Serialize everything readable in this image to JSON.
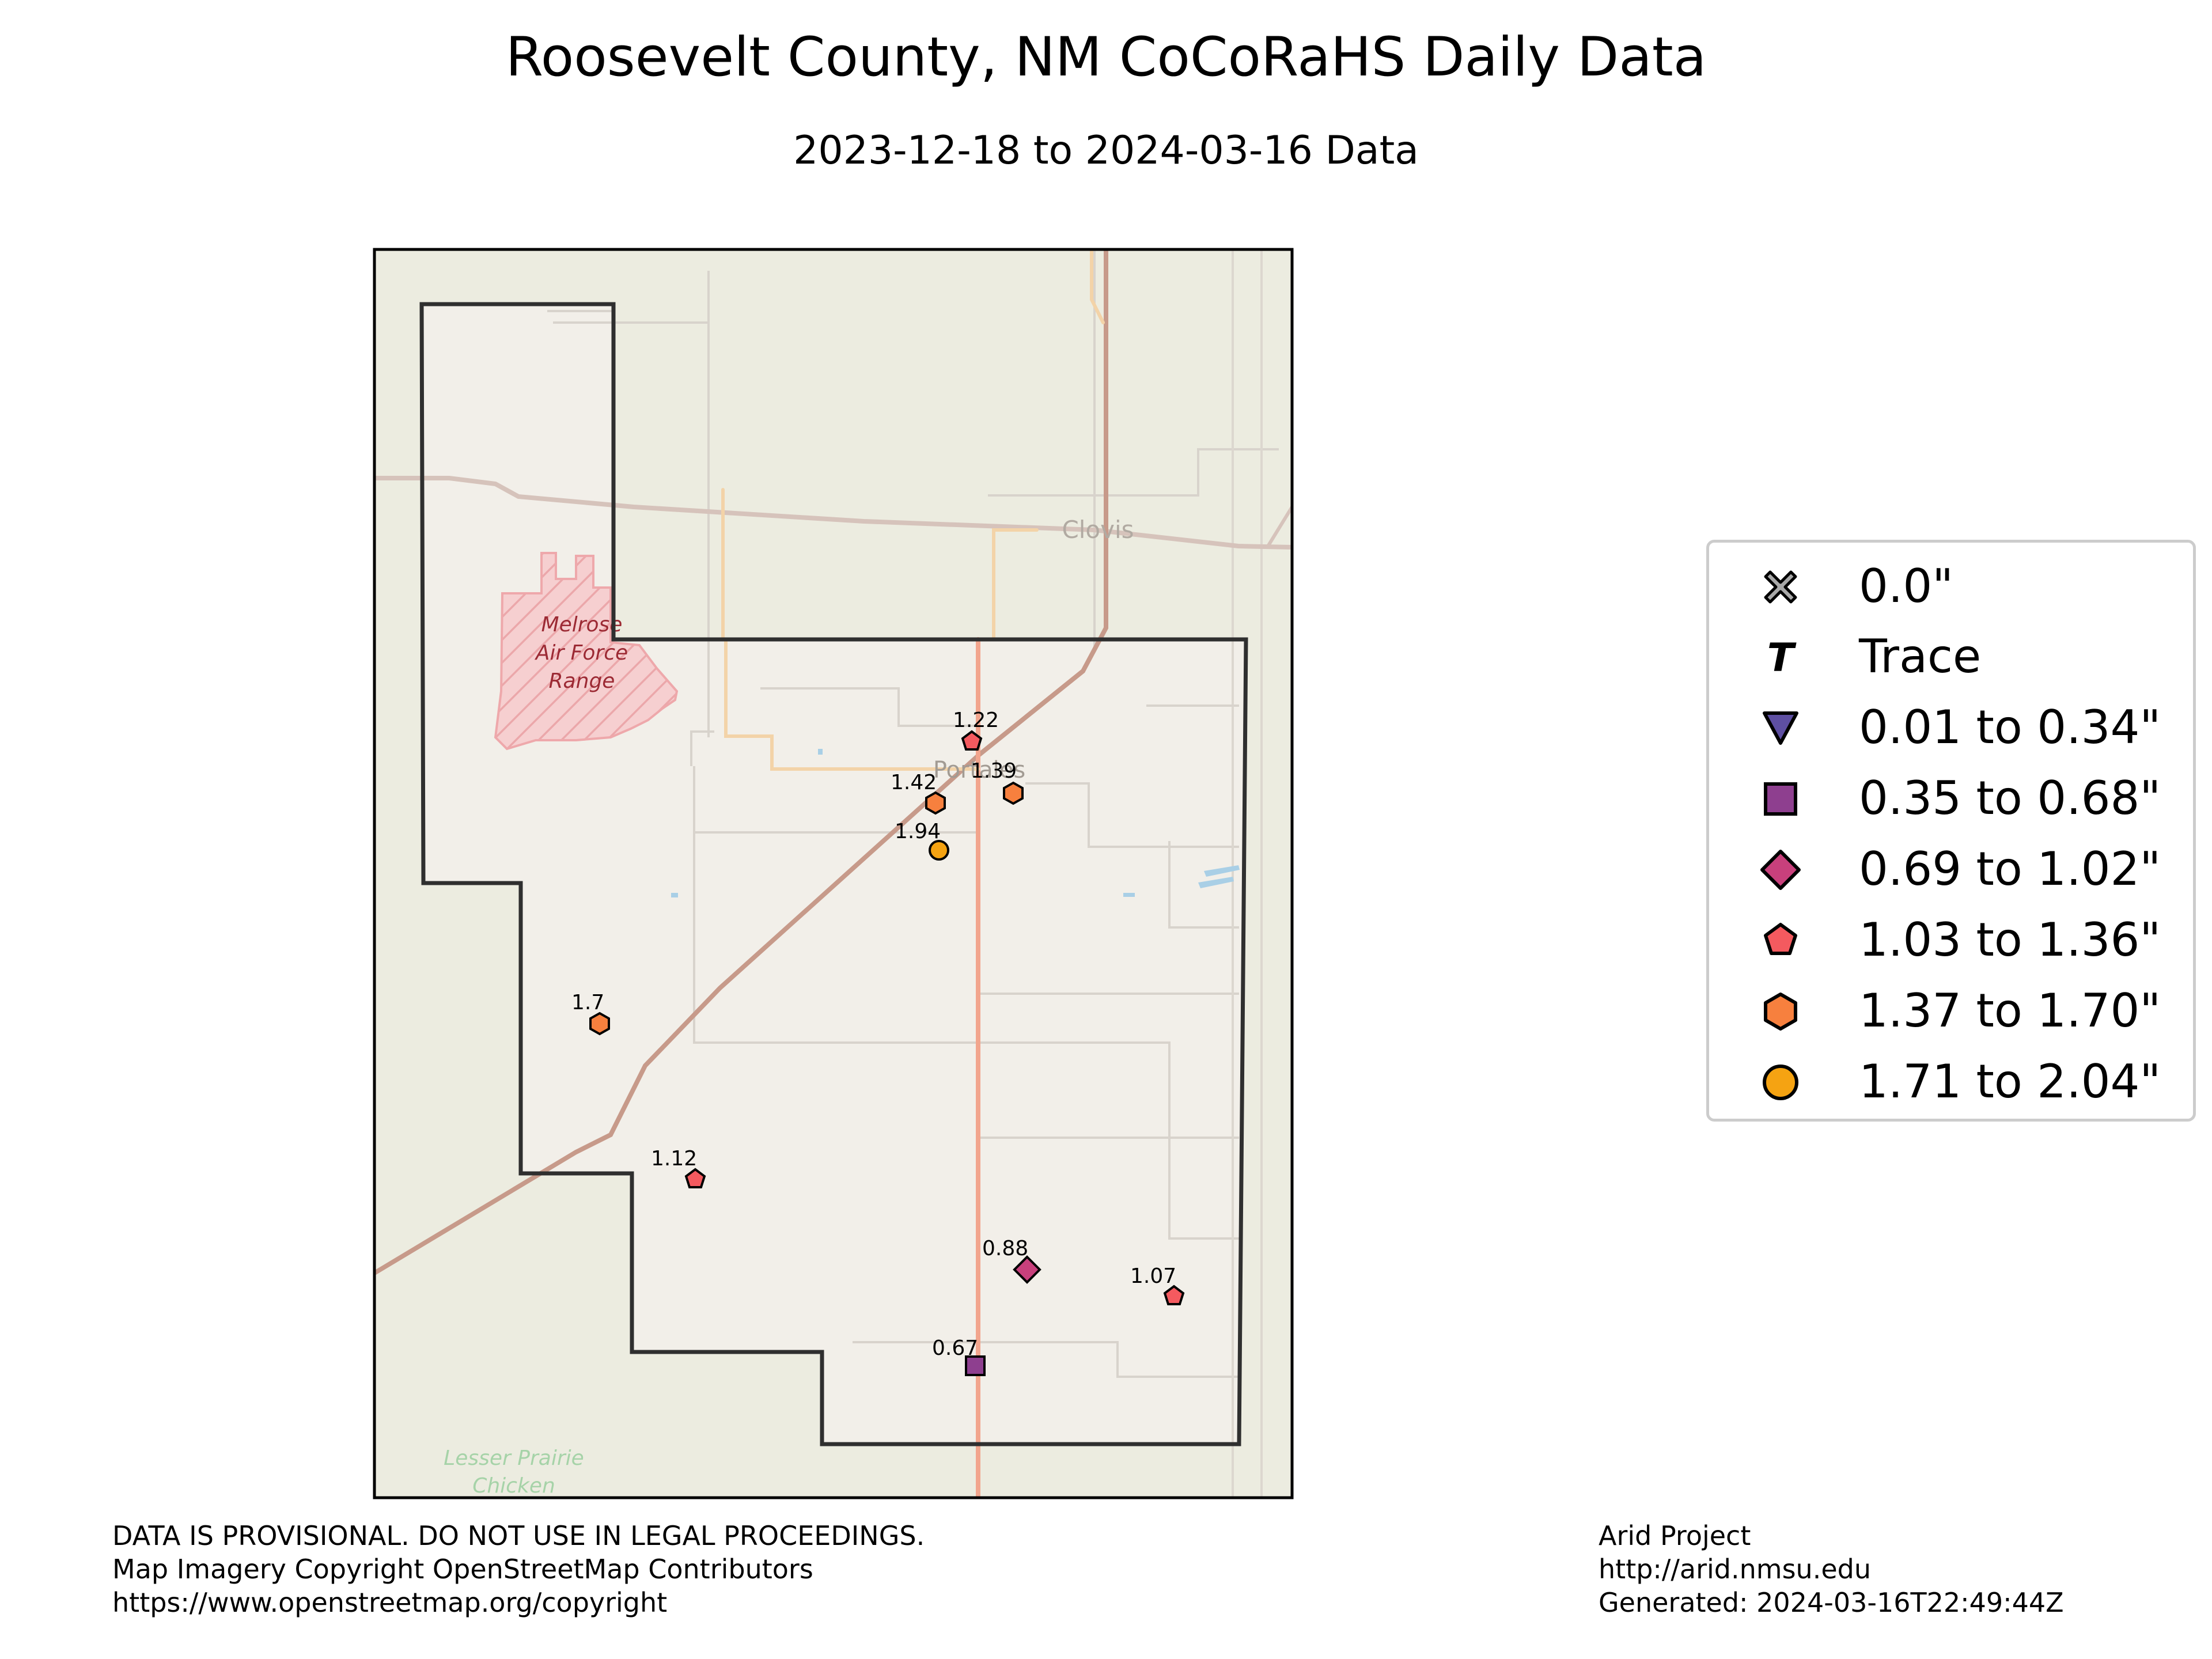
{
  "title": "Roosevelt County, NM CoCoRaHS Daily Data",
  "subtitle": "2023-12-18 to 2024-03-16 Data",
  "map_labels": {
    "city_north": "Clovis",
    "city_center": "Portales",
    "area_1": "Melrose",
    "area_2": "Air Force",
    "area_3": "Range",
    "area_4": "Lesser Prairie",
    "area_5": "Chicken"
  },
  "stations": [
    {
      "value": "1.22",
      "category": "1.03 to 1.36\"",
      "marker": "pentagon-icon"
    },
    {
      "value": "1.39",
      "category": "1.37 to 1.70\"",
      "marker": "hexagon-icon"
    },
    {
      "value": "1.42",
      "category": "1.37 to 1.70\"",
      "marker": "hexagon-icon"
    },
    {
      "value": "1.94",
      "category": "1.71 to 2.04\"",
      "marker": "circle-icon"
    },
    {
      "value": "1.7",
      "category": "1.37 to 1.70\"",
      "marker": "hexagon-icon"
    },
    {
      "value": "1.12",
      "category": "1.03 to 1.36\"",
      "marker": "pentagon-icon"
    },
    {
      "value": "0.88",
      "category": "0.69 to 1.02\"",
      "marker": "diamond-icon"
    },
    {
      "value": "1.07",
      "category": "1.03 to 1.36\"",
      "marker": "pentagon-icon"
    },
    {
      "value": "0.67",
      "category": "0.35 to 0.68\"",
      "marker": "square-icon"
    }
  ],
  "legend": {
    "items": [
      {
        "label": "0.0\"",
        "icon": "x-icon",
        "color": "#a8a8a8"
      },
      {
        "label": "Trace",
        "icon": "t-icon",
        "color": "#000000"
      },
      {
        "label": "0.01 to 0.34\"",
        "icon": "triangle-down-icon",
        "color": "#5e4fa2"
      },
      {
        "label": "0.35 to 0.68\"",
        "icon": "square-icon",
        "color": "#8e3f8f"
      },
      {
        "label": "0.69 to 1.02\"",
        "icon": "diamond-icon",
        "color": "#c8407c"
      },
      {
        "label": "1.03 to 1.36\"",
        "icon": "pentagon-icon",
        "color": "#f45a5f"
      },
      {
        "label": "1.37 to 1.70\"",
        "icon": "hexagon-icon",
        "color": "#f7803e"
      },
      {
        "label": "1.71 to 2.04\"",
        "icon": "circle-icon",
        "color": "#f5a312"
      }
    ]
  },
  "footer": {
    "left_1": "DATA IS PROVISIONAL. DO NOT USE IN LEGAL PROCEEDINGS.",
    "left_2": "Map Imagery Copyright OpenStreetMap Contributors",
    "left_3": "https://www.openstreetmap.org/copyright",
    "right_1": "Arid Project",
    "right_2": "http://arid.nmsu.edu",
    "right_3": "Generated: 2024-03-16T22:49:44Z"
  }
}
